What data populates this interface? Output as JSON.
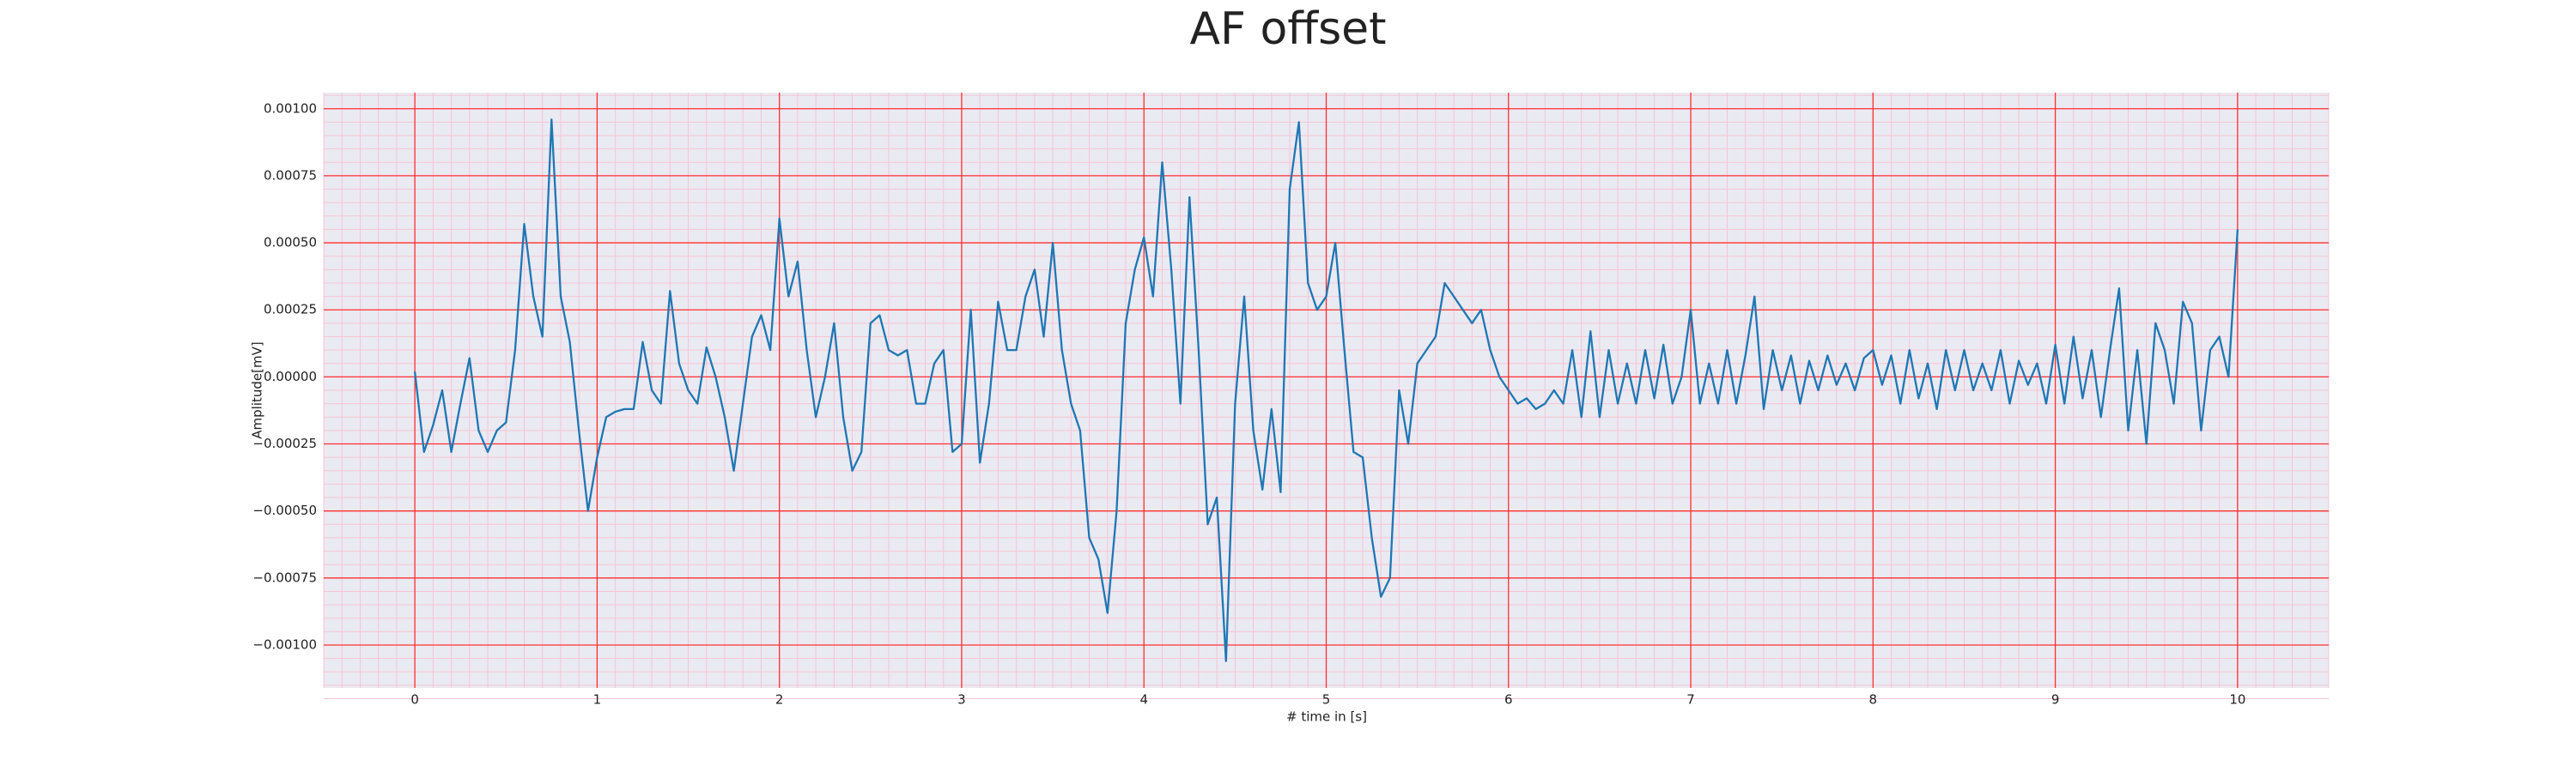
{
  "chart_data": {
    "type": "line",
    "title": "AF offset",
    "xlabel": "# time in [s]",
    "ylabel": "Amplitude[mV]",
    "xlim": [
      -0.5,
      10.5
    ],
    "ylim": [
      -0.00116,
      0.00106
    ],
    "xticks": [
      0,
      1,
      2,
      3,
      4,
      5,
      6,
      7,
      8,
      9,
      10
    ],
    "yticks": [
      {
        "value": -0.001,
        "label": "−0.00100"
      },
      {
        "value": -0.00075,
        "label": "−0.00075"
      },
      {
        "value": -0.0005,
        "label": "−0.00050"
      },
      {
        "value": -0.00025,
        "label": "−0.00025"
      },
      {
        "value": 0,
        "label": "0.00000"
      },
      {
        "value": 0.00025,
        "label": "0.00025"
      },
      {
        "value": 0.0005,
        "label": "0.00050"
      },
      {
        "value": 0.00075,
        "label": "0.00075"
      },
      {
        "value": 0.001,
        "label": "0.00100"
      }
    ],
    "grid": true,
    "grid_color": "#ff3030",
    "minor_grid": true,
    "minor_grid_color": "#f7c4d4",
    "background": "#eaeaf2",
    "series": [
      {
        "color": "#1f77b4",
        "x": [
          0,
          0.05,
          0.1,
          0.15,
          0.2,
          0.25,
          0.3,
          0.35,
          0.4,
          0.45,
          0.5,
          0.55,
          0.6,
          0.65,
          0.7,
          0.75,
          0.8,
          0.85,
          0.9,
          0.95,
          1,
          1.05,
          1.1,
          1.15,
          1.2,
          1.25,
          1.3,
          1.35,
          1.4,
          1.45,
          1.5,
          1.55,
          1.6,
          1.65,
          1.7,
          1.75,
          1.8,
          1.85,
          1.9,
          1.95,
          2,
          2.05,
          2.1,
          2.15,
          2.2,
          2.25,
          2.3,
          2.35,
          2.4,
          2.45,
          2.5,
          2.55,
          2.6,
          2.65,
          2.7,
          2.75,
          2.8,
          2.85,
          2.9,
          2.95,
          3,
          3.05,
          3.1,
          3.15,
          3.2,
          3.25,
          3.3,
          3.35,
          3.4,
          3.45,
          3.5,
          3.55,
          3.6,
          3.65,
          3.7,
          3.75,
          3.8,
          3.85,
          3.9,
          3.95,
          4,
          4.05,
          4.1,
          4.15,
          4.2,
          4.25,
          4.3,
          4.35,
          4.4,
          4.45,
          4.5,
          4.55,
          4.6,
          4.65,
          4.7,
          4.75,
          4.8,
          4.85,
          4.9,
          4.95,
          5,
          5.05,
          5.1,
          5.15,
          5.2,
          5.25,
          5.3,
          5.35,
          5.4,
          5.45,
          5.5,
          5.55,
          5.6,
          5.65,
          5.7,
          5.75,
          5.8,
          5.85,
          5.9,
          5.95,
          6,
          6.05,
          6.1,
          6.15,
          6.2,
          6.25,
          6.3,
          6.35,
          6.4,
          6.45,
          6.5,
          6.55,
          6.6,
          6.65,
          6.7,
          6.75,
          6.8,
          6.85,
          6.9,
          6.95,
          7,
          7.05,
          7.1,
          7.15,
          7.2,
          7.25,
          7.3,
          7.35,
          7.4,
          7.45,
          7.5,
          7.55,
          7.6,
          7.65,
          7.7,
          7.75,
          7.8,
          7.85,
          7.9,
          7.95,
          8,
          8.05,
          8.1,
          8.15,
          8.2,
          8.25,
          8.3,
          8.35,
          8.4,
          8.45,
          8.5,
          8.55,
          8.6,
          8.65,
          8.7,
          8.75,
          8.8,
          8.85,
          8.9,
          8.95,
          9,
          9.05,
          9.1,
          9.15,
          9.2,
          9.25,
          9.3,
          9.35,
          9.4,
          9.45,
          9.5,
          9.55,
          9.6,
          9.65,
          9.7,
          9.75,
          9.8,
          9.85,
          9.9,
          9.95,
          10
        ],
        "values": [
          2e-05,
          -0.00028,
          -0.00018,
          -5e-05,
          -0.00028,
          -0.0001,
          7e-05,
          -0.0002,
          -0.00028,
          -0.0002,
          -0.00017,
          0.0001,
          0.00057,
          0.0003,
          0.00015,
          0.00096,
          0.0003,
          0.00013,
          -0.0002,
          -0.0005,
          -0.0003,
          -0.00015,
          -0.00013,
          -0.00012,
          -0.00012,
          0.00013,
          -5e-05,
          -0.0001,
          0.00032,
          5e-05,
          -5e-05,
          -0.0001,
          0.00011,
          0,
          -0.00015,
          -0.00035,
          -0.0001,
          0.00015,
          0.00023,
          0.0001,
          0.00059,
          0.0003,
          0.00043,
          0.0001,
          -0.00015,
          0,
          0.0002,
          -0.00015,
          -0.00035,
          -0.00028,
          0.0002,
          0.00023,
          0.0001,
          8e-05,
          0.0001,
          -0.0001,
          -0.0001,
          5e-05,
          0.0001,
          -0.00028,
          -0.00025,
          0.00025,
          -0.00032,
          -0.0001,
          0.00028,
          0.0001,
          0.0001,
          0.0003,
          0.0004,
          0.00015,
          0.0005,
          0.0001,
          -0.0001,
          -0.0002,
          -0.0006,
          -0.00068,
          -0.00088,
          -0.0005,
          0.0002,
          0.0004,
          0.00052,
          0.0003,
          0.0008,
          0.0004,
          -0.0001,
          0.00067,
          0.0001,
          -0.00055,
          -0.00045,
          -0.00106,
          -0.0001,
          0.0003,
          -0.0002,
          -0.00042,
          -0.00012,
          -0.00043,
          0.0007,
          0.00095,
          0.00035,
          0.00025,
          0.0003,
          0.0005,
          0.0001,
          -0.00028,
          -0.0003,
          -0.0006,
          -0.00082,
          -0.00075,
          -5e-05,
          -0.00025,
          5e-05,
          0.0001,
          0.00015,
          0.00035,
          0.0003,
          0.00025,
          0.0002,
          0.00025,
          0.0001,
          0,
          -5e-05,
          -0.0001,
          -8e-05,
          -0.00012,
          -0.0001,
          -5e-05,
          -0.0001,
          0.0001,
          -0.00015,
          0.00017,
          -0.00015,
          0.0001,
          -0.0001,
          5e-05,
          -0.0001,
          0.0001,
          -8e-05,
          0.00012,
          -0.0001,
          0,
          0.00025,
          -0.0001,
          5e-05,
          -0.0001,
          0.0001,
          -0.0001,
          8e-05,
          0.0003,
          -0.00012,
          0.0001,
          -5e-05,
          8e-05,
          -0.0001,
          6e-05,
          -5e-05,
          8e-05,
          -3e-05,
          5e-05,
          -5e-05,
          7e-05,
          0.0001,
          -3e-05,
          8e-05,
          -0.0001,
          0.0001,
          -8e-05,
          5e-05,
          -0.00012,
          0.0001,
          -5e-05,
          0.0001,
          -5e-05,
          5e-05,
          -5e-05,
          0.0001,
          -0.0001,
          6e-05,
          -3e-05,
          5e-05,
          -0.0001,
          0.00012,
          -0.0001,
          0.00015,
          -8e-05,
          0.0001,
          -0.00015,
          0.0001,
          0.00033,
          -0.0002,
          0.0001,
          -0.00025,
          0.0002,
          0.0001,
          -0.0001,
          0.00028,
          0.0002,
          -0.0002,
          0.0001,
          0.00015,
          0,
          0.00055
        ]
      }
    ]
  }
}
